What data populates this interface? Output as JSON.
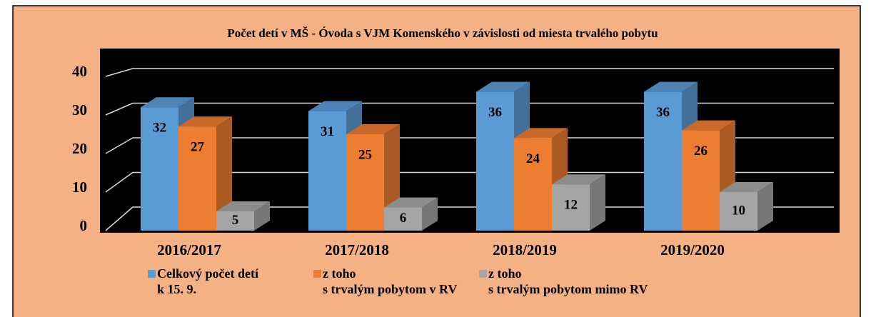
{
  "chart_data": {
    "type": "bar3d",
    "title": "Počet detí v MŠ - Óvoda s VJM Komenského v závislosti od miesta trvalého pobytu",
    "categories": [
      "2016/2017",
      "2017/2018",
      "2018/2019",
      "2019/2020"
    ],
    "series": [
      {
        "name": "Celkový počet detí\nk 15. 9.",
        "color": "#5b9bd5",
        "values": [
          32,
          31,
          36,
          36
        ]
      },
      {
        "name": "z toho\ns trvalým pobytom v RV",
        "color": "#ed7d31",
        "values": [
          27,
          25,
          24,
          26
        ]
      },
      {
        "name": "z toho\ns trvalým pobytom  mimo RV",
        "color": "#a5a5a5",
        "values": [
          5,
          6,
          12,
          10
        ]
      }
    ],
    "ylim": [
      0,
      40
    ],
    "yticks": [
      0,
      10,
      20,
      30,
      40
    ],
    "grid": true,
    "legend": "bottom"
  }
}
